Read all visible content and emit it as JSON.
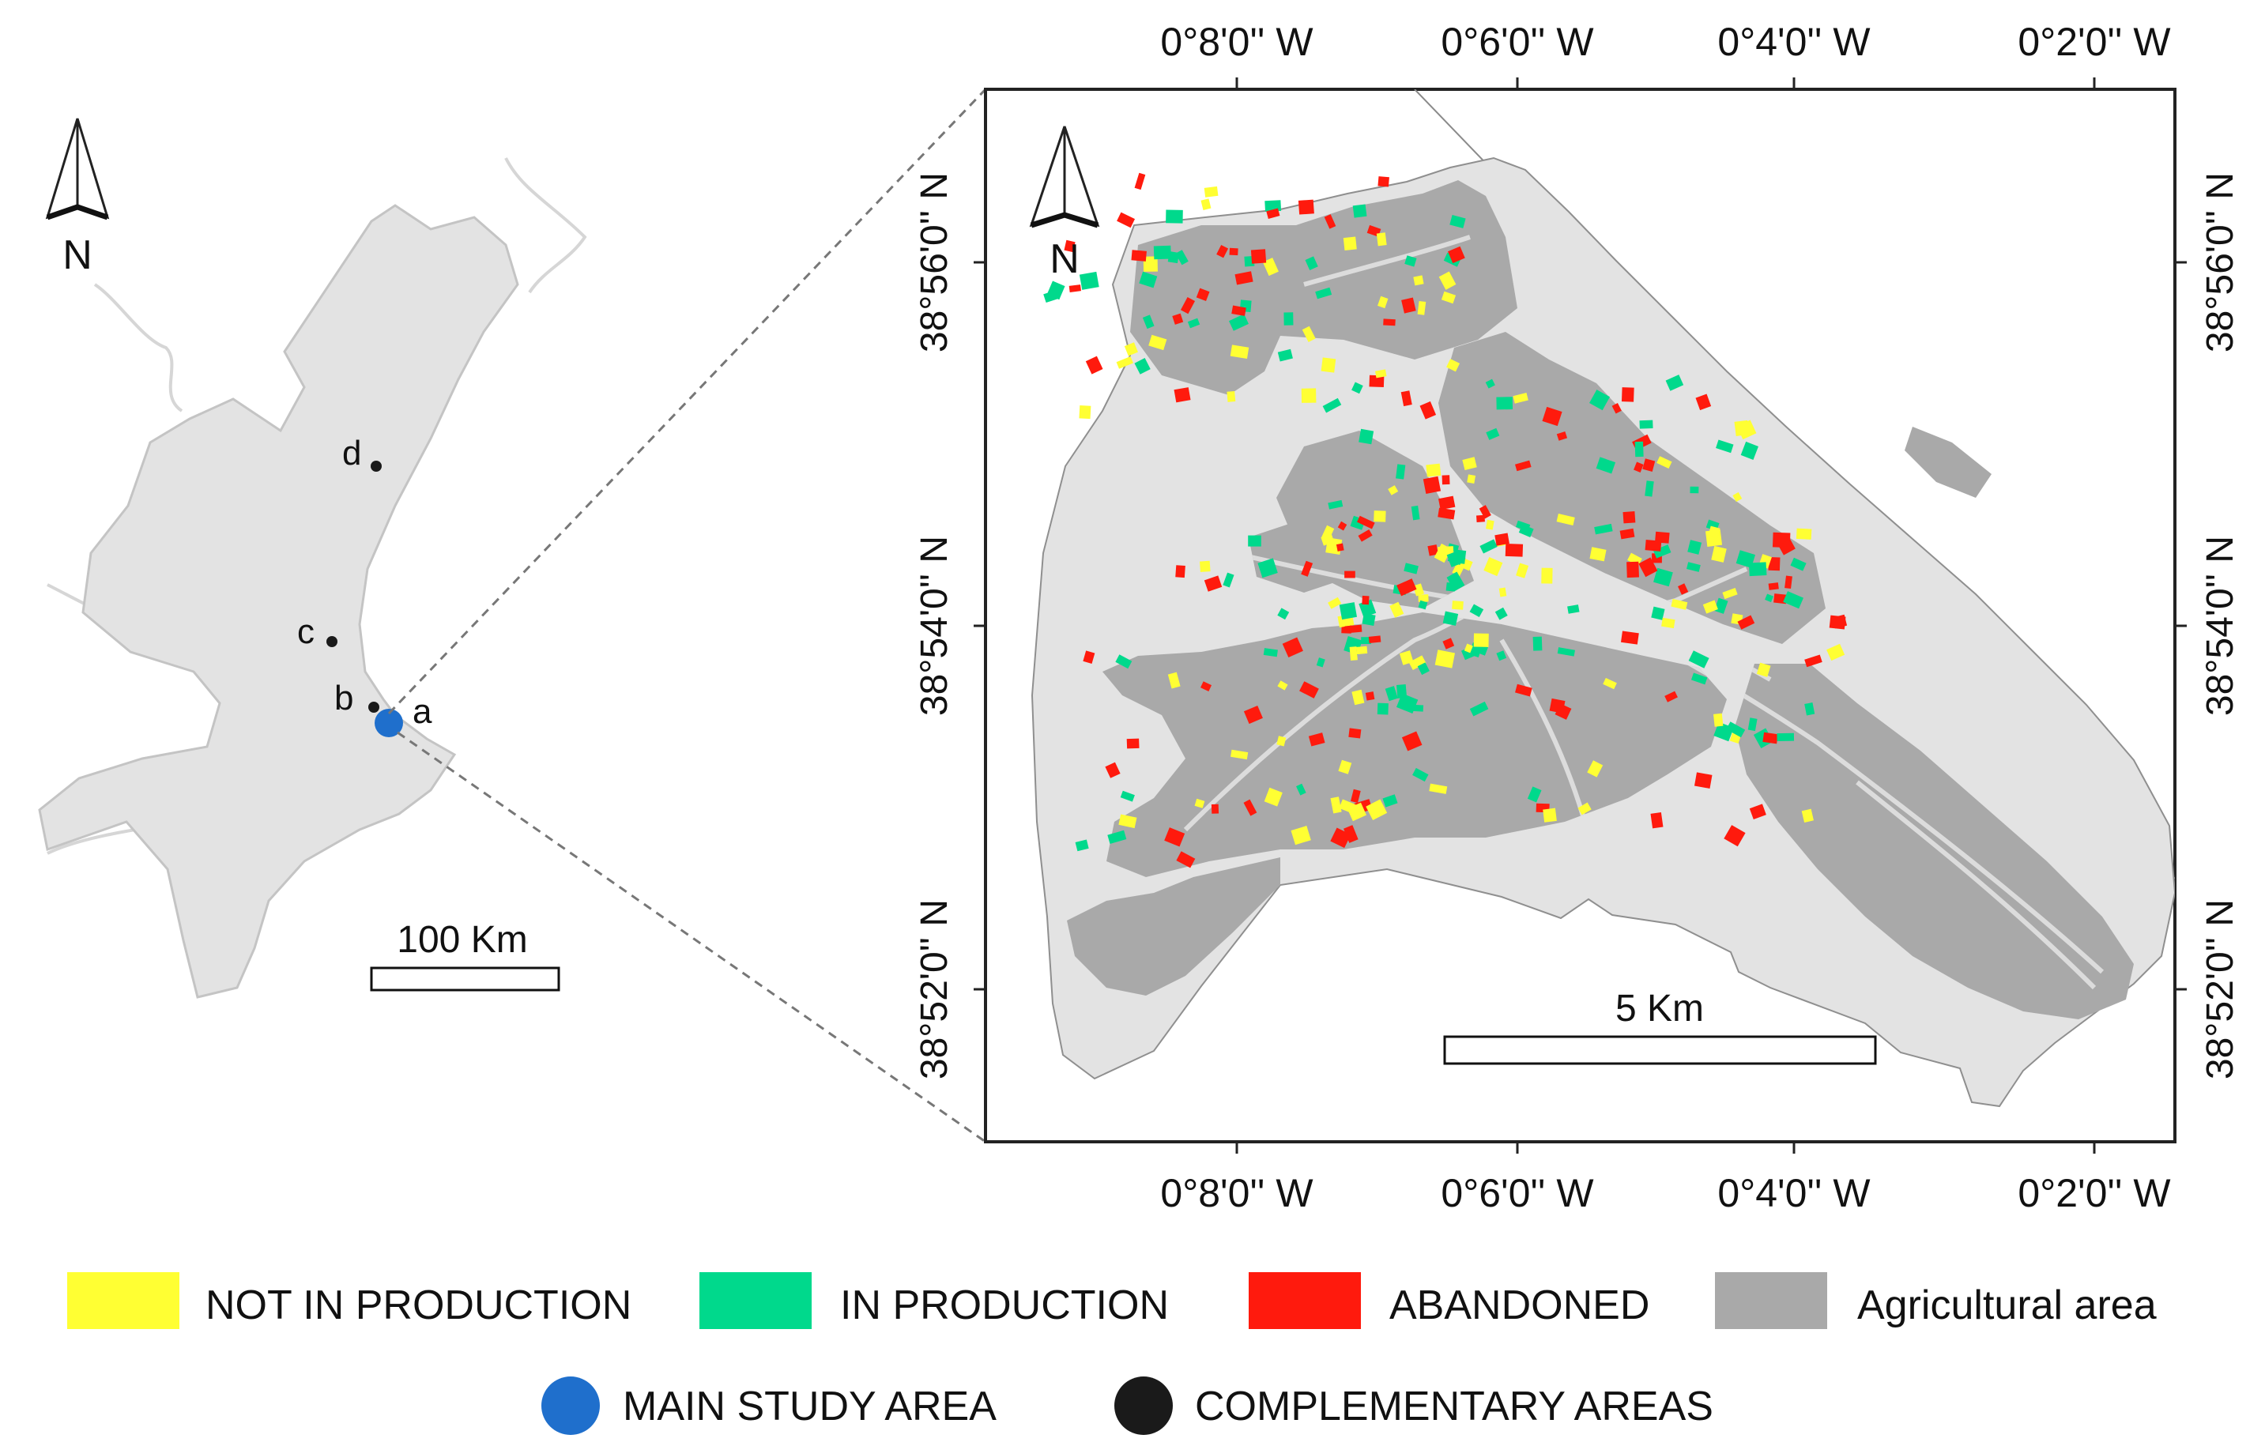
{
  "colors": {
    "not_in_production": "#ffff33",
    "in_production": "#00d98c",
    "abandoned": "#ff1a0d",
    "agricultural_area": "#a9a9a9",
    "region_fill": "#e3e3e3",
    "main_study_area": "#1f6fcc",
    "complementary_areas": "#1a1a1a"
  },
  "overview_map": {
    "north_label": "N",
    "scale_label": "100 Km",
    "sites": [
      {
        "label": "a",
        "type": "main"
      },
      {
        "label": "b",
        "type": "complementary"
      },
      {
        "label": "c",
        "type": "complementary"
      },
      {
        "label": "d",
        "type": "complementary"
      }
    ]
  },
  "detail_map": {
    "north_label": "N",
    "scale_label": "5 Km",
    "x_ticks": [
      "0°8'0'' W",
      "0°6'0'' W",
      "0°4'0'' W",
      "0°2'0'' W"
    ],
    "y_ticks": [
      "38°56'0'' N",
      "38°54'0'' N",
      "38°52'0'' N"
    ]
  },
  "legend": {
    "row1": [
      {
        "key": "not_in_production",
        "label": "NOT IN PRODUCTION"
      },
      {
        "key": "in_production",
        "label": "IN PRODUCTION"
      },
      {
        "key": "abandoned",
        "label": "ABANDONED"
      },
      {
        "key": "agricultural_area",
        "label": "Agricultural area"
      }
    ],
    "row2": [
      {
        "key": "main_study_area",
        "label": "MAIN STUDY AREA"
      },
      {
        "key": "complementary_areas",
        "label": "COMPLEMENTARY AREAS"
      }
    ]
  }
}
